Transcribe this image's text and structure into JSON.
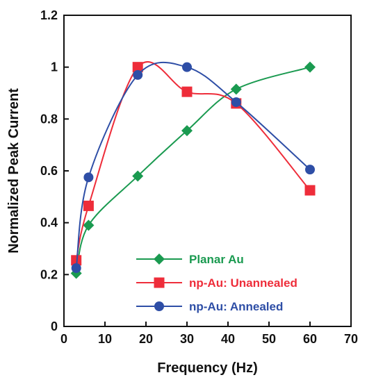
{
  "chart_data": {
    "type": "line",
    "xlabel": "Frequency (Hz)",
    "ylabel": "Normalized Peak Current",
    "xlim": [
      0,
      70
    ],
    "ylim": [
      0,
      1.2
    ],
    "xticks": [
      0,
      10,
      20,
      30,
      40,
      50,
      60,
      70
    ],
    "yticks": [
      0,
      0.2,
      0.4,
      0.6,
      0.8,
      1.0,
      1.2
    ],
    "xtick_labels": [
      "0",
      "10",
      "20",
      "30",
      "40",
      "50",
      "60",
      "70"
    ],
    "ytick_labels": [
      "0",
      "0.2",
      "0.4",
      "0.6",
      "0.8",
      "1",
      "1.2"
    ],
    "grid": false,
    "legend_position": "bottom-right",
    "series": [
      {
        "name": "Planar Au",
        "color": "#1a9a50",
        "marker": "diamond",
        "x": [
          3,
          6,
          18,
          30,
          42,
          60
        ],
        "y": [
          0.205,
          0.39,
          0.58,
          0.755,
          0.915,
          1.0
        ]
      },
      {
        "name": "np-Au: Unannealed",
        "color": "#ee2d3a",
        "marker": "square",
        "x": [
          3,
          6,
          18,
          30,
          42,
          60
        ],
        "y": [
          0.255,
          0.465,
          1.0,
          0.905,
          0.86,
          0.525
        ]
      },
      {
        "name": "np-Au: Annealed",
        "color": "#2e4ea6",
        "marker": "circle",
        "x": [
          3,
          6,
          18,
          30,
          42,
          60
        ],
        "y": [
          0.225,
          0.575,
          0.97,
          1.0,
          0.865,
          0.605
        ]
      }
    ]
  }
}
